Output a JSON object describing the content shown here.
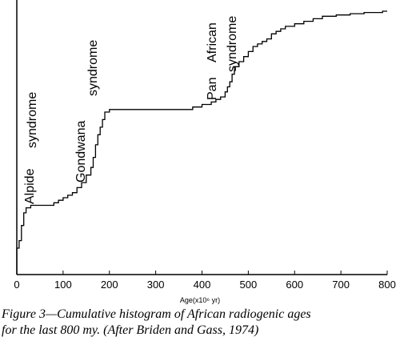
{
  "chart_data": {
    "type": "step",
    "xlabel": "Age(x10⁶ yr)",
    "ylabel": "",
    "xlim": [
      0,
      800
    ],
    "ylim": [
      0,
      1
    ],
    "x_ticks": [
      0,
      100,
      200,
      300,
      400,
      500,
      600,
      700,
      800
    ],
    "x_tick_labels": [
      "0",
      "100",
      "200",
      "300",
      "400",
      "500",
      "600",
      "700",
      "800"
    ],
    "grid": false,
    "series": [
      {
        "x": [
          0,
          5,
          10,
          15,
          20,
          25,
          30,
          35,
          80,
          90,
          100,
          110,
          120,
          130,
          140,
          150,
          160,
          165,
          170,
          175,
          180,
          185,
          190,
          200,
          380,
          390,
          400,
          410,
          420,
          430,
          440,
          450,
          455,
          460,
          465,
          470,
          480,
          490,
          500,
          510,
          520,
          530,
          540,
          550,
          560,
          570,
          580,
          600,
          620,
          640,
          660,
          690,
          720,
          750,
          790,
          800
        ],
        "y": [
          0.05,
          0.08,
          0.14,
          0.19,
          0.21,
          0.21,
          0.22,
          0.22,
          0.23,
          0.24,
          0.25,
          0.26,
          0.27,
          0.29,
          0.31,
          0.34,
          0.37,
          0.41,
          0.46,
          0.5,
          0.53,
          0.56,
          0.59,
          0.6,
          0.61,
          0.61,
          0.62,
          0.62,
          0.63,
          0.64,
          0.65,
          0.67,
          0.69,
          0.71,
          0.74,
          0.77,
          0.79,
          0.81,
          0.83,
          0.85,
          0.86,
          0.87,
          0.88,
          0.9,
          0.91,
          0.92,
          0.93,
          0.94,
          0.95,
          0.96,
          0.97,
          0.975,
          0.98,
          0.985,
          0.99,
          0.99
        ]
      }
    ],
    "annotations": [
      {
        "text": "Alpide syndrome",
        "x": 20,
        "y": 0.22
      },
      {
        "text": "Gondwana syndrome",
        "x": 140,
        "y": 0.32
      },
      {
        "text": "Pan African syndrome",
        "x": 440,
        "y": 0.67
      }
    ]
  },
  "caption": {
    "line1": "Figure 3—Cumulative histogram  of African radiogenic ages",
    "line2": "for the last  800 my. (After Briden and Gass, 1974)"
  },
  "annotation_lines": {
    "alpide": [
      "Alpide",
      "syndrome"
    ],
    "gondwana": [
      "Gondwana",
      "syndrome"
    ],
    "panafrican": [
      "Pan",
      "African",
      "syndrome"
    ]
  }
}
